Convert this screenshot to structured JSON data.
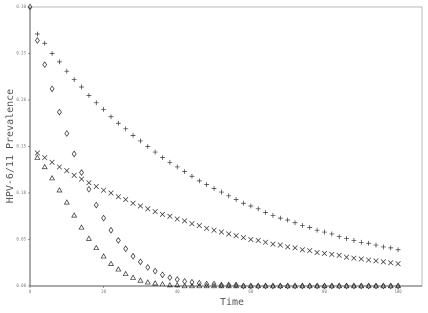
{
  "chart_data": {
    "type": "scatter",
    "xlabel": "Time",
    "ylabel": "HPV-6/11 Prevalence",
    "xlim": [
      0,
      106.5
    ],
    "ylim": [
      0,
      0.3
    ],
    "xticks": [
      0,
      20,
      40,
      60,
      80,
      100
    ],
    "yticks": [
      {
        "value": 0,
        "label": "0.00"
      },
      {
        "value": 0.05,
        "label": "0.05"
      },
      {
        "value": 0.1,
        "label": "0.10"
      },
      {
        "value": 0.15,
        "label": "0.15"
      },
      {
        "value": 0.2,
        "label": "0.20"
      },
      {
        "value": 0.25,
        "label": "0.25"
      },
      {
        "value": 0.3,
        "label": "0.30"
      }
    ],
    "x": [
      0,
      2,
      4,
      6,
      8,
      10,
      12,
      14,
      16,
      18,
      20,
      22,
      24,
      26,
      28,
      30,
      32,
      34,
      36,
      38,
      40,
      42,
      44,
      46,
      48,
      50,
      52,
      54,
      56,
      58,
      60,
      62,
      64,
      66,
      68,
      70,
      72,
      74,
      76,
      78,
      80,
      82,
      84,
      86,
      88,
      90,
      92,
      94,
      96,
      98,
      100
    ],
    "series": [
      {
        "marker": "plus",
        "color": "#333333",
        "values": [
          null,
          0.271,
          0.261,
          0.25,
          0.241,
          0.231,
          0.222,
          0.214,
          0.205,
          0.197,
          0.19,
          0.182,
          0.175,
          0.169,
          0.162,
          0.156,
          0.15,
          0.144,
          0.138,
          0.133,
          0.128,
          0.123,
          0.118,
          0.113,
          0.109,
          0.105,
          0.101,
          0.097,
          0.093,
          0.089,
          0.086,
          0.083,
          0.079,
          0.076,
          0.073,
          0.071,
          0.068,
          0.065,
          0.063,
          0.06,
          0.058,
          0.056,
          0.053,
          0.051,
          0.049,
          0.047,
          0.046,
          0.044,
          0.042,
          0.041,
          0.039
        ]
      },
      {
        "marker": "cross",
        "color": "#333333",
        "values": [
          null,
          0.143,
          0.138,
          0.133,
          0.128,
          0.124,
          0.119,
          0.115,
          0.111,
          0.107,
          0.103,
          0.1,
          0.096,
          0.093,
          0.089,
          0.086,
          0.083,
          0.08,
          0.077,
          0.075,
          0.072,
          0.07,
          0.067,
          0.065,
          0.062,
          0.06,
          0.058,
          0.056,
          0.054,
          0.052,
          0.05,
          0.049,
          0.047,
          0.045,
          0.044,
          0.042,
          0.041,
          0.039,
          0.038,
          0.036,
          0.035,
          0.034,
          0.033,
          0.031,
          0.03,
          0.029,
          0.028,
          0.027,
          0.026,
          0.025,
          0.024
        ]
      },
      {
        "marker": "diamond",
        "color": "#333333",
        "values": [
          0.3,
          0.264,
          0.238,
          0.212,
          0.187,
          0.164,
          0.142,
          0.122,
          0.104,
          0.087,
          0.073,
          0.06,
          0.049,
          0.04,
          0.032,
          0.026,
          0.02,
          0.016,
          0.012,
          0.009,
          0.007,
          0.005,
          0.004,
          0.003,
          0.002,
          0.002,
          0.001,
          0.001,
          0.001,
          0,
          0,
          0,
          0,
          0,
          0,
          0,
          0,
          0,
          0,
          0,
          0,
          0,
          0,
          0,
          0,
          0,
          0,
          0,
          0,
          0,
          0
        ]
      },
      {
        "marker": "triangle",
        "color": "#333333",
        "values": [
          null,
          0.138,
          0.128,
          0.116,
          0.103,
          0.09,
          0.076,
          0.063,
          0.051,
          0.041,
          0.032,
          0.024,
          0.018,
          0.013,
          0.009,
          0.006,
          0.004,
          0.003,
          0.002,
          0.001,
          0.001,
          0,
          0,
          0,
          0,
          0,
          0,
          0,
          0,
          0,
          0,
          0,
          0,
          0,
          0,
          0,
          0,
          0,
          0,
          0,
          0,
          0,
          0,
          0,
          0,
          0,
          0,
          0,
          0,
          0,
          0
        ]
      }
    ]
  }
}
